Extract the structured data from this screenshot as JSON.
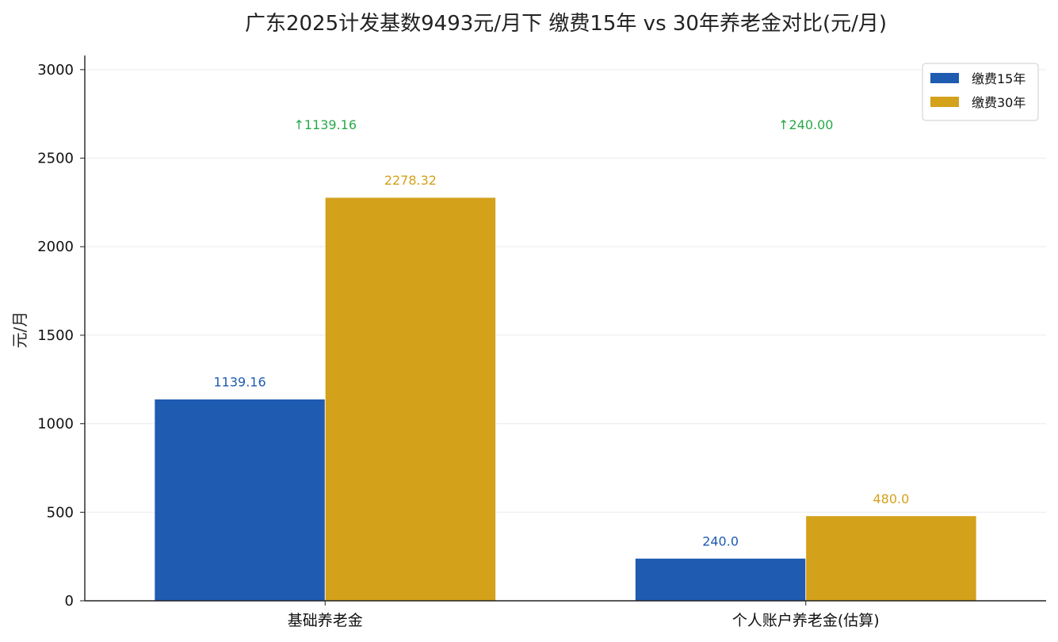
{
  "chart_data": {
    "type": "bar",
    "title": "广东2025计发基数9493元/月下 缴费15年 vs 30年养老金对比(元/月)",
    "ylabel": "元/月",
    "xlabel": "",
    "categories": [
      "基础养老金",
      "个人账户养老金(估算)"
    ],
    "series": [
      {
        "name": "缴费15年",
        "color": "#1f5bb0",
        "values": [
          1139.16,
          240.0
        ],
        "labels": [
          "1139.16",
          "240.0"
        ]
      },
      {
        "name": "缴费30年",
        "color": "#d4a11b",
        "values": [
          2278.32,
          480.0
        ],
        "labels": [
          "2278.32",
          "480.0"
        ]
      }
    ],
    "differences": [
      "↑1139.16",
      "↑240.00"
    ],
    "difference_color": "#2aa84a",
    "ylim": [
      0,
      3080
    ],
    "yticks": [
      0,
      500,
      1000,
      1500,
      2000,
      2500,
      3000
    ],
    "grid": true,
    "legend_position": "top-right"
  }
}
